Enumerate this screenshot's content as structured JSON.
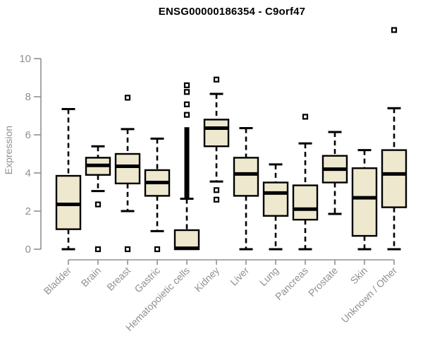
{
  "chart_data": {
    "type": "boxplot",
    "title": "ENSG00000186354 - C9orf47",
    "ylabel": "Expression",
    "xlabel": "",
    "yticks": [
      0,
      2,
      4,
      6,
      8,
      10
    ],
    "ylim": [
      0,
      11.6
    ],
    "grid": false,
    "legend": "none",
    "categories": [
      "Bladder",
      "Brain",
      "Breast",
      "Gastric",
      "Hematopoietic cells",
      "Kidney",
      "Liver",
      "Lung",
      "Pancreas",
      "Prostate",
      "Skin",
      "Unknown / Other"
    ],
    "boxes": [
      {
        "category": "Bladder",
        "whisker_low": 0.0,
        "q1": 1.05,
        "median": 2.35,
        "q3": 3.85,
        "whisker_high": 7.35,
        "outliers": []
      },
      {
        "category": "Brain",
        "whisker_low": 3.05,
        "q1": 3.9,
        "median": 4.4,
        "q3": 4.8,
        "whisker_high": 5.4,
        "outliers": [
          2.35,
          0.0
        ]
      },
      {
        "category": "Breast",
        "whisker_low": 2.0,
        "q1": 3.45,
        "median": 4.35,
        "q3": 5.0,
        "whisker_high": 6.3,
        "outliers": [
          7.95,
          0.0
        ]
      },
      {
        "category": "Gastric",
        "whisker_low": 0.95,
        "q1": 2.8,
        "median": 3.5,
        "q3": 4.15,
        "whisker_high": 5.8,
        "outliers": [
          0.0
        ]
      },
      {
        "category": "Hematopoietic cells",
        "whisker_low": 0.0,
        "q1": 0.0,
        "median": 0.05,
        "q3": 1.0,
        "whisker_high": 2.65,
        "outliers": [
          8.6,
          8.25,
          7.6,
          7.05
        ],
        "outlier_column": {
          "from": 2.7,
          "to": 6.4
        }
      },
      {
        "category": "Kidney",
        "whisker_low": 3.55,
        "q1": 5.4,
        "median": 6.35,
        "q3": 6.8,
        "whisker_high": 8.15,
        "outliers": [
          8.9,
          3.1,
          2.6
        ]
      },
      {
        "category": "Liver",
        "whisker_low": 0.0,
        "q1": 2.8,
        "median": 3.95,
        "q3": 4.8,
        "whisker_high": 6.35,
        "outliers": []
      },
      {
        "category": "Lung",
        "whisker_low": 0.0,
        "q1": 1.75,
        "median": 2.95,
        "q3": 3.5,
        "whisker_high": 4.45,
        "outliers": []
      },
      {
        "category": "Pancreas",
        "whisker_low": 0.0,
        "q1": 1.55,
        "median": 2.1,
        "q3": 3.35,
        "whisker_high": 5.55,
        "outliers": [
          6.95
        ]
      },
      {
        "category": "Prostate",
        "whisker_low": 1.85,
        "q1": 3.5,
        "median": 4.2,
        "q3": 4.9,
        "whisker_high": 6.15,
        "outliers": []
      },
      {
        "category": "Skin",
        "whisker_low": 0.0,
        "q1": 0.7,
        "median": 2.7,
        "q3": 4.25,
        "whisker_high": 5.2,
        "outliers": []
      },
      {
        "category": "Unknown / Other",
        "whisker_low": 0.0,
        "q1": 2.2,
        "median": 3.95,
        "q3": 5.2,
        "whisker_high": 7.4,
        "outliers": [
          11.5
        ]
      }
    ],
    "colors": {
      "box_fill": "#ede8ce",
      "box_border": "#000000",
      "median": "#000000",
      "whisker": "#000000",
      "axis": "#909090",
      "tick_label": "#909090",
      "title": "#000000",
      "background": "#ffffff"
    }
  }
}
